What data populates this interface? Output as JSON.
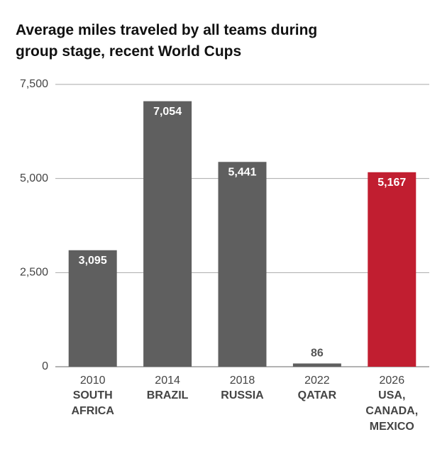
{
  "chart_data": {
    "type": "bar",
    "title": "Average miles traveled by all teams during group stage, recent World Cups",
    "categories": [
      "2010",
      "2014",
      "2018",
      "2022",
      "2026"
    ],
    "category_names": [
      [
        "SOUTH",
        "AFRICA"
      ],
      [
        "BRAZIL"
      ],
      [
        "RUSSIA"
      ],
      [
        "QATAR"
      ],
      [
        "USA,",
        "CANADA,",
        "MEXICO"
      ]
    ],
    "values": [
      3095,
      7054,
      5441,
      86,
      5167
    ],
    "value_labels": [
      "3,095",
      "7,054",
      "5,441",
      "86",
      "5,167"
    ],
    "colors": [
      "#5f5f5f",
      "#5f5f5f",
      "#5f5f5f",
      "#5f5f5f",
      "#c11e30"
    ],
    "ylim": [
      0,
      7500
    ],
    "yticks": [
      0,
      {
        "value": 2500,
        "label": "2,500"
      },
      {
        "value": 5000,
        "label": "5,000"
      },
      {
        "value": 7500,
        "label": "7,500"
      }
    ],
    "grid": true
  }
}
